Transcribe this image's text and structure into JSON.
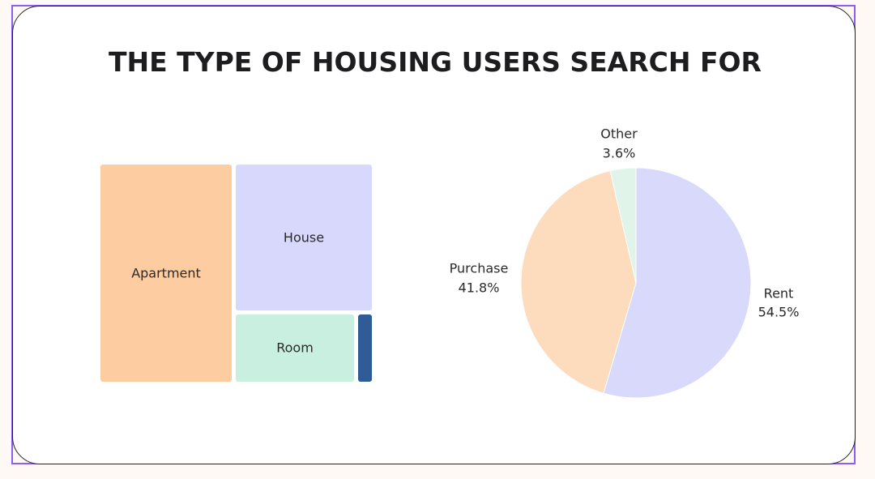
{
  "title": "THE TYPE OF HOUSING USERS SEARCH FOR",
  "chart_data": [
    {
      "type": "treemap",
      "items": [
        {
          "label": "Apartment",
          "color": "#fdcca0"
        },
        {
          "label": "House",
          "color": "#d8d8fc"
        },
        {
          "label": "Room",
          "color": "#c9efe0"
        },
        {
          "label": "",
          "color": "#2f5b96"
        }
      ]
    },
    {
      "type": "pie",
      "slices": [
        {
          "label": "Rent",
          "percent_label": "54.5%",
          "value": 54.5,
          "color": "#d9d9fb"
        },
        {
          "label": "Purchase",
          "percent_label": "41.8%",
          "value": 41.8,
          "color": "#fddbbd"
        },
        {
          "label": "Other",
          "percent_label": "3.6%",
          "value": 3.6,
          "color": "#e0f4ea"
        }
      ]
    }
  ]
}
